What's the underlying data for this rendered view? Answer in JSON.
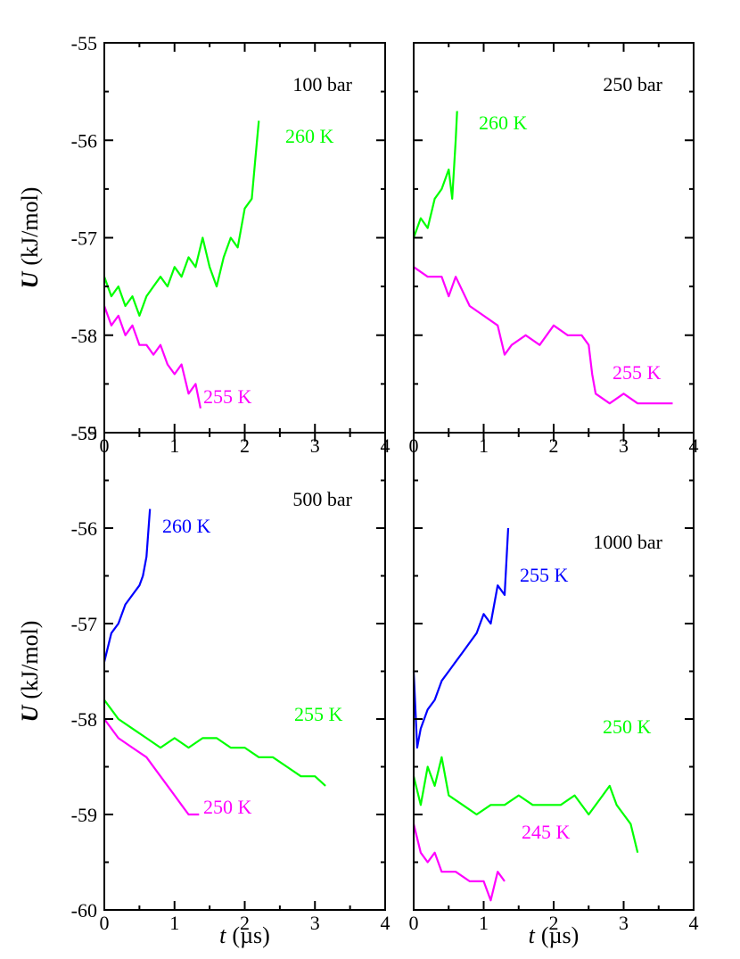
{
  "chart_data": [
    {
      "type": "line",
      "annotation": "100 bar",
      "xlim": [
        0,
        4
      ],
      "ylim": [
        -59,
        -55
      ],
      "xticks": [
        0,
        1,
        2,
        3,
        4
      ],
      "yticks": [
        -55,
        -56,
        -57,
        -58,
        -59
      ],
      "xminor": [
        0.5,
        1.5,
        2.5,
        3.5
      ],
      "yminor": [
        -55.5,
        -56.5,
        -57.5,
        -58.5
      ],
      "ytick_labels": true,
      "ylabel": {
        "symbol": "U",
        "unit": "(kJ/mol)"
      },
      "series": [
        {
          "name": "260 K",
          "color": "#00ff00",
          "x": [
            0,
            0.1,
            0.2,
            0.3,
            0.4,
            0.5,
            0.6,
            0.7,
            0.8,
            0.9,
            1.0,
            1.1,
            1.2,
            1.3,
            1.4,
            1.5,
            1.6,
            1.7,
            1.8,
            1.9,
            2.0,
            2.1,
            2.15,
            2.2
          ],
          "values": [
            -57.4,
            -57.6,
            -57.5,
            -57.7,
            -57.6,
            -57.8,
            -57.6,
            -57.5,
            -57.4,
            -57.5,
            -57.3,
            -57.4,
            -57.2,
            -57.3,
            -57.0,
            -57.3,
            -57.5,
            -57.2,
            -57.0,
            -57.1,
            -56.7,
            -56.6,
            -56.2,
            -55.8
          ]
        },
        {
          "name": "255 K",
          "color": "#ff00ff",
          "x": [
            0,
            0.1,
            0.2,
            0.3,
            0.4,
            0.5,
            0.6,
            0.7,
            0.8,
            0.9,
            1.0,
            1.1,
            1.2,
            1.3,
            1.37
          ],
          "values": [
            -57.7,
            -57.9,
            -57.8,
            -58.0,
            -57.9,
            -58.1,
            -58.1,
            -58.2,
            -58.1,
            -58.3,
            -58.4,
            -58.3,
            -58.6,
            -58.5,
            -58.75
          ]
        }
      ]
    },
    {
      "type": "line",
      "annotation": "250 bar",
      "xlim": [
        0,
        4
      ],
      "ylim": [
        -59,
        -55
      ],
      "xticks": [
        0,
        1,
        2,
        3,
        4
      ],
      "yticks": [
        -55,
        -56,
        -57,
        -58,
        -59
      ],
      "xminor": [
        0.5,
        1.5,
        2.5,
        3.5
      ],
      "yminor": [
        -55.5,
        -56.5,
        -57.5,
        -58.5
      ],
      "ytick_labels": false,
      "series": [
        {
          "name": "260 K",
          "color": "#00ff00",
          "x": [
            0,
            0.1,
            0.2,
            0.3,
            0.4,
            0.5,
            0.55,
            0.6,
            0.62
          ],
          "values": [
            -57.0,
            -56.8,
            -56.9,
            -56.6,
            -56.5,
            -56.3,
            -56.6,
            -56.0,
            -55.7
          ]
        },
        {
          "name": "255 K",
          "color": "#ff00ff",
          "x": [
            0,
            0.2,
            0.4,
            0.5,
            0.6,
            0.8,
            1.0,
            1.2,
            1.3,
            1.4,
            1.6,
            1.8,
            2.0,
            2.2,
            2.4,
            2.5,
            2.55,
            2.6,
            2.8,
            3.0,
            3.2,
            3.4,
            3.6,
            3.7
          ],
          "values": [
            -57.3,
            -57.4,
            -57.4,
            -57.6,
            -57.4,
            -57.7,
            -57.8,
            -57.9,
            -58.2,
            -58.1,
            -58.0,
            -58.1,
            -57.9,
            -58.0,
            -58.0,
            -58.1,
            -58.4,
            -58.6,
            -58.7,
            -58.6,
            -58.7,
            -58.7,
            -58.7,
            -58.7
          ]
        }
      ]
    },
    {
      "type": "line",
      "annotation": "500 bar",
      "xlim": [
        0,
        4
      ],
      "ylim": [
        -60,
        -55
      ],
      "xticks": [
        0,
        1,
        2,
        3,
        4
      ],
      "yticks": [
        -55,
        -56,
        -57,
        -58,
        -59,
        -60
      ],
      "xminor": [
        0.5,
        1.5,
        2.5,
        3.5
      ],
      "yminor": [
        -55.5,
        -56.5,
        -57.5,
        -58.5,
        -59.5
      ],
      "ytick_labels": true,
      "ylabel": {
        "symbol": "U",
        "unit": "(kJ/mol)"
      },
      "xlabel": {
        "symbol": "t",
        "unit": "(µs)"
      },
      "series": [
        {
          "name": "260 K",
          "color": "#0000ff",
          "x": [
            0,
            0.1,
            0.2,
            0.3,
            0.4,
            0.5,
            0.55,
            0.6,
            0.65
          ],
          "values": [
            -57.4,
            -57.1,
            -57.0,
            -56.8,
            -56.7,
            -56.6,
            -56.5,
            -56.3,
            -55.8
          ]
        },
        {
          "name": "255 K",
          "color": "#00ff00",
          "x": [
            0,
            0.2,
            0.4,
            0.6,
            0.8,
            1.0,
            1.2,
            1.4,
            1.6,
            1.8,
            2.0,
            2.2,
            2.4,
            2.6,
            2.8,
            3.0,
            3.15
          ],
          "values": [
            -57.8,
            -58.0,
            -58.1,
            -58.2,
            -58.3,
            -58.2,
            -58.3,
            -58.2,
            -58.2,
            -58.3,
            -58.3,
            -58.4,
            -58.4,
            -58.5,
            -58.6,
            -58.6,
            -58.7
          ]
        },
        {
          "name": "250 K",
          "color": "#ff00ff",
          "x": [
            0,
            0.2,
            0.4,
            0.6,
            0.8,
            1.0,
            1.1,
            1.2,
            1.35
          ],
          "values": [
            -58.0,
            -58.2,
            -58.3,
            -58.4,
            -58.6,
            -58.8,
            -58.9,
            -59.0,
            -59.0
          ]
        }
      ]
    },
    {
      "type": "line",
      "annotation": "1000 bar",
      "xlim": [
        0,
        4
      ],
      "ylim": [
        -60,
        -55
      ],
      "xticks": [
        0,
        1,
        2,
        3,
        4
      ],
      "yticks": [
        -55,
        -56,
        -57,
        -58,
        -59,
        -60
      ],
      "xminor": [
        0.5,
        1.5,
        2.5,
        3.5
      ],
      "yminor": [
        -55.5,
        -56.5,
        -57.5,
        -58.5,
        -59.5
      ],
      "ytick_labels": false,
      "xlabel": {
        "symbol": "t",
        "unit": "(µs)"
      },
      "series": [
        {
          "name": "255 K",
          "color": "#0000ff",
          "x": [
            0,
            0.05,
            0.1,
            0.2,
            0.3,
            0.4,
            0.5,
            0.6,
            0.7,
            0.8,
            0.9,
            1.0,
            1.1,
            1.2,
            1.3,
            1.35
          ],
          "values": [
            -57.5,
            -58.3,
            -58.1,
            -57.9,
            -57.8,
            -57.6,
            -57.5,
            -57.4,
            -57.3,
            -57.2,
            -57.1,
            -56.9,
            -57.0,
            -56.6,
            -56.7,
            -56.0
          ]
        },
        {
          "name": "250 K",
          "color": "#00ff00",
          "x": [
            0,
            0.1,
            0.2,
            0.3,
            0.4,
            0.5,
            0.7,
            0.9,
            1.1,
            1.3,
            1.5,
            1.7,
            1.9,
            2.1,
            2.3,
            2.5,
            2.7,
            2.8,
            2.9,
            3.0,
            3.1,
            3.2
          ],
          "values": [
            -58.6,
            -58.9,
            -58.5,
            -58.7,
            -58.4,
            -58.8,
            -58.9,
            -59.0,
            -58.9,
            -58.9,
            -58.8,
            -58.9,
            -58.9,
            -58.9,
            -58.8,
            -59.0,
            -58.8,
            -58.7,
            -58.9,
            -59.0,
            -59.1,
            -59.4
          ]
        },
        {
          "name": "245 K",
          "color": "#ff00ff",
          "x": [
            0,
            0.1,
            0.2,
            0.3,
            0.4,
            0.6,
            0.8,
            1.0,
            1.1,
            1.2,
            1.3
          ],
          "values": [
            -59.1,
            -59.4,
            -59.5,
            -59.4,
            -59.6,
            -59.6,
            -59.7,
            -59.7,
            -59.9,
            -59.6,
            -59.7
          ]
        }
      ]
    }
  ]
}
